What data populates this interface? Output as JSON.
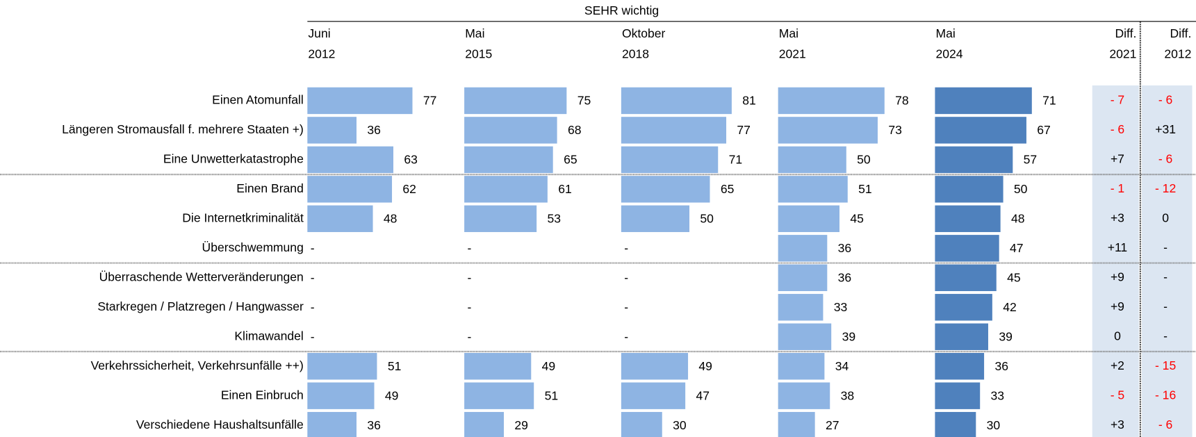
{
  "chart_data": {
    "type": "bar",
    "orientation": "horizontal",
    "title": "SEHR wichtig",
    "categories": [
      "Einen Atomunfall",
      "Längeren Stromausfall f. mehrere Staaten +)",
      "Eine Unwetterkatastrophe",
      "Einen Brand",
      "Die Internetkriminalität",
      "Überschwemmung",
      "Überraschende Wetterveränderungen",
      "Starkregen / Platzregen / Hangwasser",
      "Klimawandel",
      "Verkehrssicherheit, Verkehrsunfälle ++)",
      "Einen Einbruch",
      "Verschiedene Haushaltsunfälle"
    ],
    "xlim": [
      0,
      115
    ],
    "series": [
      {
        "name": [
          "Juni",
          "2012"
        ],
        "color": "#8eb4e3",
        "values": [
          77,
          36,
          63,
          62,
          48,
          null,
          null,
          null,
          null,
          51,
          49,
          36
        ],
        "value_labels": [
          null,
          null,
          null,
          null,
          null,
          "-",
          "-",
          "-",
          "-",
          null,
          null,
          null
        ]
      },
      {
        "name": [
          "Mai",
          "2015"
        ],
        "color": "#8eb4e3",
        "values": [
          75,
          68,
          65,
          61,
          53,
          null,
          null,
          null,
          null,
          49,
          51,
          29
        ],
        "value_labels": [
          null,
          null,
          null,
          null,
          null,
          "-",
          "-",
          "-",
          "-",
          null,
          null,
          null
        ]
      },
      {
        "name": [
          "Oktober",
          "2018"
        ],
        "color": "#8eb4e3",
        "values": [
          81,
          77,
          71,
          65,
          50,
          null,
          null,
          null,
          null,
          49,
          47,
          30
        ],
        "value_labels": [
          null,
          null,
          null,
          null,
          null,
          "-",
          "-",
          "-",
          "-",
          null,
          null,
          null
        ]
      },
      {
        "name": [
          "Mai",
          "2021"
        ],
        "color": "#8eb4e3",
        "values": [
          78,
          73,
          50,
          51,
          45,
          36,
          36,
          33,
          39,
          34,
          38,
          27
        ]
      },
      {
        "name": [
          "Mai",
          "2024"
        ],
        "color": "#4f81bd",
        "values": [
          71,
          67,
          57,
          50,
          48,
          47,
          45,
          42,
          39,
          36,
          33,
          30
        ]
      }
    ],
    "diff_columns": [
      {
        "name": [
          "Diff.",
          "2021"
        ],
        "values": [
          -7,
          -6,
          7,
          -1,
          3,
          11,
          9,
          9,
          0,
          2,
          -5,
          3
        ],
        "value_labels": [
          "- 7",
          "- 6",
          "+7",
          "- 1",
          "+3",
          "+11",
          "+9",
          "+9",
          null,
          "+2",
          "- 5",
          "+3"
        ]
      },
      {
        "name": [
          "Diff.",
          "2012"
        ],
        "values": [
          -6,
          31,
          -6,
          -12,
          0,
          null,
          null,
          null,
          null,
          -15,
          -16,
          -6
        ],
        "value_labels": [
          "- 6",
          "+31",
          "- 6",
          "- 12",
          null,
          "-",
          "-",
          "-",
          "-",
          "- 15",
          "- 16",
          "- 6"
        ]
      }
    ],
    "negative_color": "#ff0000"
  }
}
